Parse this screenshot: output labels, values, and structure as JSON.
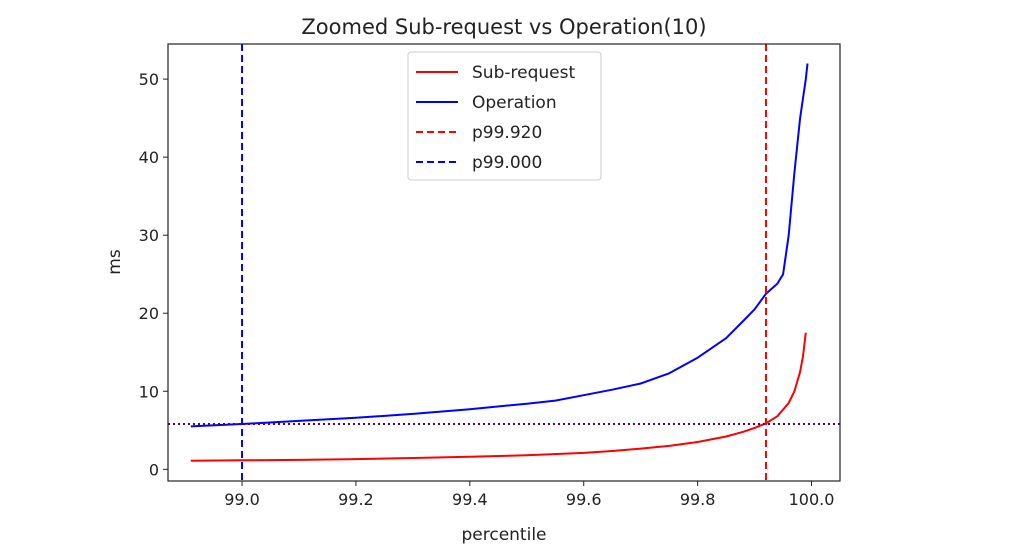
{
  "chart_data": {
    "type": "line",
    "title": "Zoomed Sub-request vs Operation(10)",
    "xlabel": "percentile",
    "ylabel": "ms",
    "xlim": [
      98.87,
      100.05
    ],
    "ylim": [
      -1.5,
      54.5
    ],
    "xticks": [
      99.0,
      99.2,
      99.4,
      99.6,
      99.8,
      100.0
    ],
    "xtick_labels": [
      "99.0",
      "99.2",
      "99.4",
      "99.6",
      "99.8",
      "100.0"
    ],
    "yticks": [
      0,
      10,
      20,
      30,
      40,
      50
    ],
    "ytick_labels": [
      "0",
      "10",
      "20",
      "30",
      "40",
      "50"
    ],
    "series": [
      {
        "name": "Sub-request",
        "color": "#ff0000",
        "style": "solid",
        "x": [
          98.91,
          99.0,
          99.1,
          99.2,
          99.3,
          99.4,
          99.5,
          99.6,
          99.65,
          99.7,
          99.75,
          99.8,
          99.85,
          99.88,
          99.9,
          99.92,
          99.94,
          99.96,
          99.97,
          99.98,
          99.985,
          99.99
        ],
        "y": [
          1.1,
          1.15,
          1.2,
          1.3,
          1.45,
          1.6,
          1.8,
          2.1,
          2.35,
          2.65,
          3.0,
          3.5,
          4.2,
          4.8,
          5.3,
          5.9,
          6.8,
          8.5,
          10.0,
          12.5,
          14.5,
          17.5
        ]
      },
      {
        "name": "Operation",
        "color": "#0000ff",
        "style": "solid",
        "x": [
          98.91,
          99.0,
          99.1,
          99.2,
          99.3,
          99.4,
          99.5,
          99.55,
          99.6,
          99.65,
          99.7,
          99.75,
          99.8,
          99.85,
          99.88,
          99.9,
          99.92,
          99.94,
          99.95,
          99.96,
          99.97,
          99.98,
          99.99,
          99.993
        ],
        "y": [
          5.5,
          5.8,
          6.2,
          6.6,
          7.1,
          7.7,
          8.4,
          8.8,
          9.5,
          10.2,
          11.0,
          12.3,
          14.3,
          16.8,
          19.0,
          20.5,
          22.5,
          23.8,
          25.0,
          30.0,
          38.0,
          45.0,
          50.0,
          52.0
        ]
      }
    ],
    "vlines": [
      {
        "name": "p99.920",
        "x": 99.92,
        "color": "#ff0000",
        "style": "dashed"
      },
      {
        "name": "p99.000",
        "x": 99.0,
        "color": "#0000ff",
        "style": "dashed"
      }
    ],
    "hlines": [
      {
        "y": 5.8,
        "color": "#4b0082",
        "style": "dotted"
      }
    ],
    "legend": {
      "placement": "upper-center",
      "entries": [
        {
          "label": "Sub-request",
          "color": "#ff0000",
          "style": "solid"
        },
        {
          "label": "Operation",
          "color": "#0000ff",
          "style": "solid"
        },
        {
          "label": "p99.920",
          "color": "#ff0000",
          "style": "dashed"
        },
        {
          "label": "p99.000",
          "color": "#0000ff",
          "style": "dashed"
        }
      ]
    }
  }
}
